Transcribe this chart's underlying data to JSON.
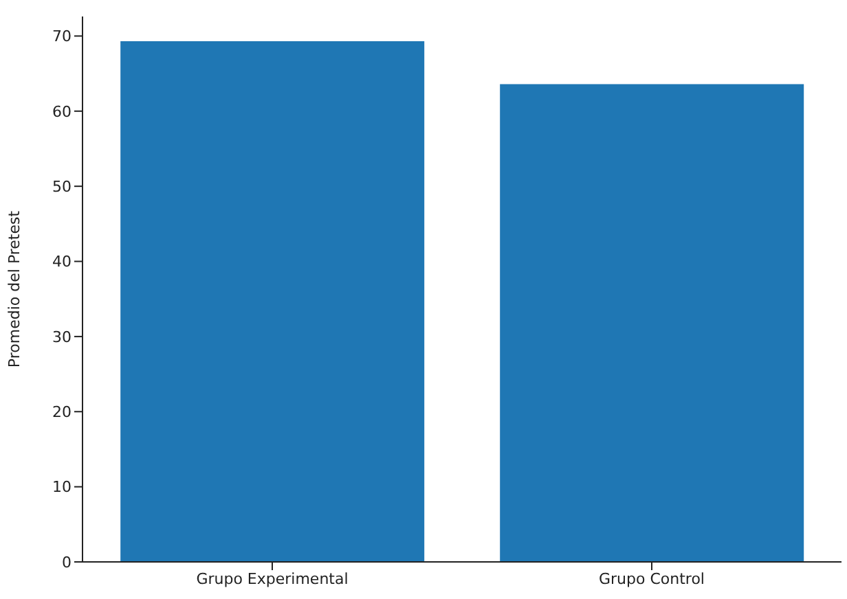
{
  "chart_data": {
    "type": "bar",
    "categories": [
      "Grupo Experimental",
      "Grupo Control"
    ],
    "values": [
      69.3,
      63.6
    ],
    "color": "#1f77b4",
    "ylabel": "Promedio del Pretest",
    "ylim": [
      0,
      72.6
    ],
    "yticks": [
      0,
      10,
      20,
      30,
      40,
      50,
      60,
      70
    ],
    "grid": false,
    "legend": false
  }
}
